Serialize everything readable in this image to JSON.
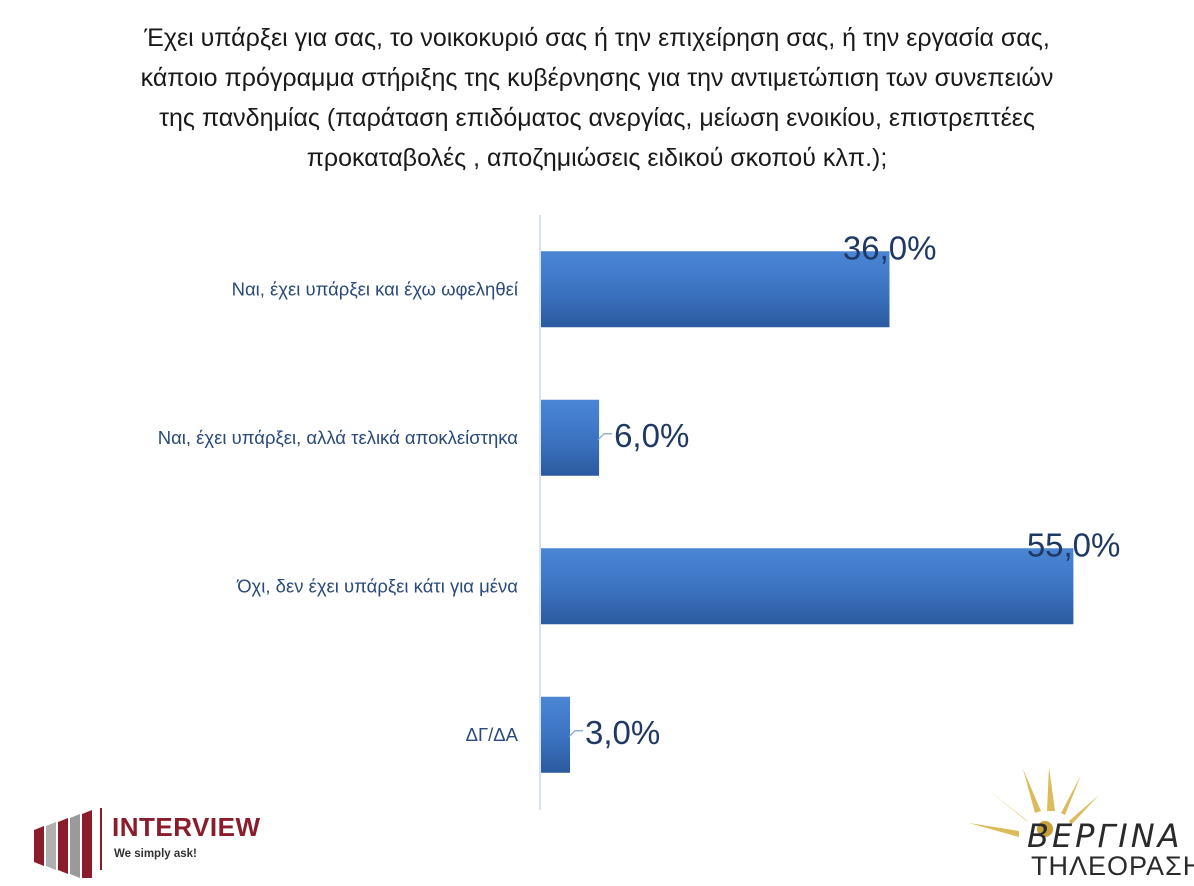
{
  "title_lines": [
    "Έχει υπάρξει για σας, το νοικοκυριό σας ή την επιχείρηση σας, ή την εργασία σας,",
    "κάποιο πρόγραμμα στήριξης της κυβέρνησης για την αντιμετώπιση των συνεπειών",
    "της πανδημίας (παράταση επιδόματος ανεργίας, μείωση ενοικίου, επιστρεπτέες",
    "προκαταβολές , αποζημιώσεις ειδικού σκοπού κλπ.);"
  ],
  "chart_data": {
    "type": "bar",
    "orientation": "horizontal",
    "categories": [
      "Ναι, έχει υπάρξει και έχω ωφεληθεί",
      "Ναι, έχει υπάρξει, αλλά τελικά αποκλείστηκα",
      "Όχι, δεν έχει υπάρξει κάτι για μένα",
      "ΔΓ/ΔΑ"
    ],
    "values": [
      36.0,
      6.0,
      55.0,
      3.0
    ],
    "data_labels": [
      "36,0%",
      "6,0%",
      "55,0%",
      "3,0%"
    ],
    "xlim": [
      0,
      60
    ],
    "grid": false,
    "legend": "none",
    "bar_color": "#3b72c0"
  },
  "logos": {
    "interview": {
      "name": "INTERVIEW",
      "tagline": "We simply ask!"
    },
    "vergina": {
      "name": "ΒΕΡΓΙΝΑ",
      "subtitle": "ΤΗΛΕΟΡΑΣΗ"
    }
  }
}
